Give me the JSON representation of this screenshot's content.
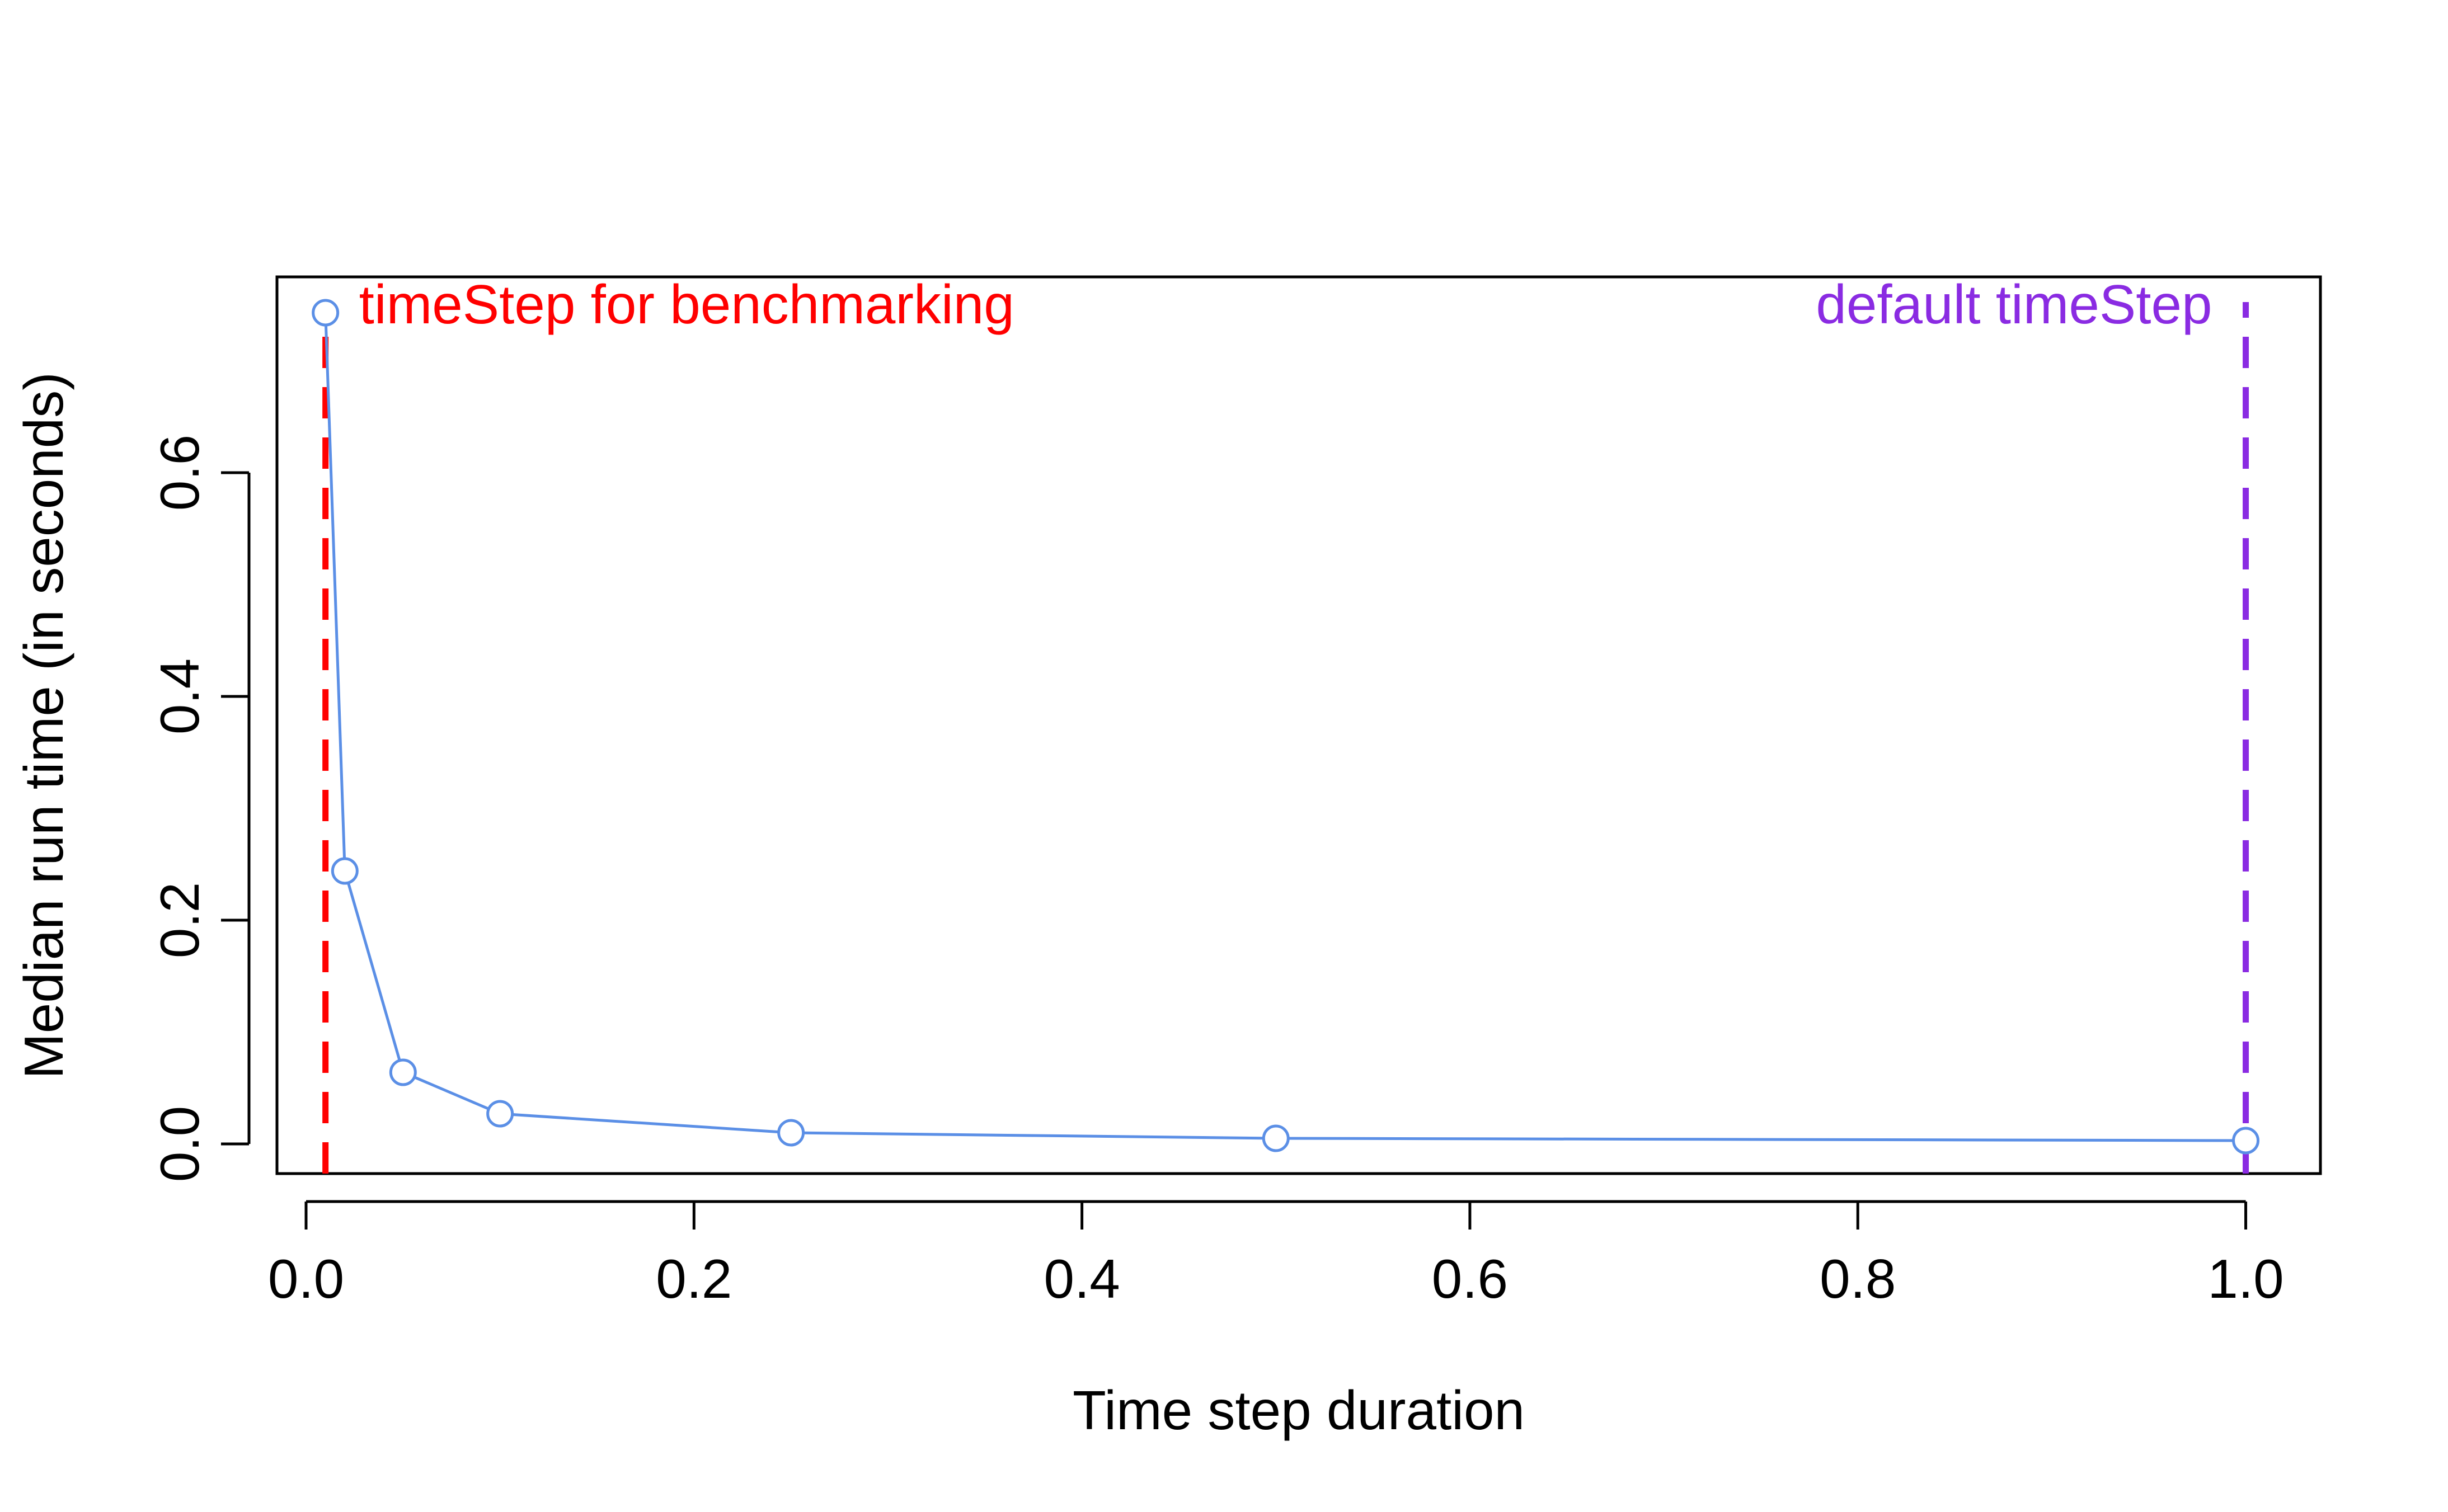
{
  "chart_data": {
    "type": "line",
    "title": "",
    "xlabel": "Time step duration",
    "ylabel": "Median run time (in seconds)",
    "xlim": [
      -0.015,
      1.0385
    ],
    "ylim": [
      -0.0265,
      0.775
    ],
    "x_ticks": [
      0.0,
      0.2,
      0.4,
      0.6,
      0.8,
      1.0
    ],
    "x_tick_labels": [
      "0.0",
      "0.2",
      "0.4",
      "0.6",
      "0.8",
      "1.0"
    ],
    "y_ticks": [
      0.0,
      0.2,
      0.4,
      0.6
    ],
    "y_tick_labels": [
      "0.0",
      "0.2",
      "0.4",
      "0.6"
    ],
    "grid": false,
    "series": [
      {
        "color": "#5b8fe6",
        "marker": "open-circle",
        "x": [
          0.01,
          0.02,
          0.05,
          0.1,
          0.25,
          0.5,
          1.0
        ],
        "y": [
          0.743,
          0.244,
          0.064,
          0.027,
          0.01,
          0.005,
          0.003
        ]
      }
    ],
    "vlines": [
      {
        "x": 0.01,
        "color": "#ff0000",
        "style": "dashed",
        "label": "timeStep for benchmarking",
        "label_side": "right"
      },
      {
        "x": 1.0,
        "color": "#8a2be2",
        "style": "dashed",
        "label": "default timeStep",
        "label_side": "left"
      }
    ]
  }
}
